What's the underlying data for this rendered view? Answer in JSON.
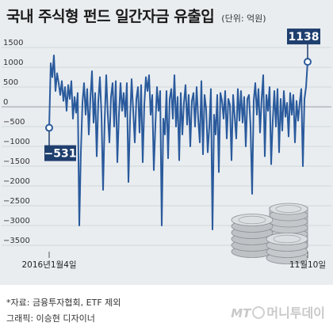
{
  "header": {
    "title": "국내 주식형 펀드 일간자금 유출입",
    "unit": "(단위: 억원)"
  },
  "chart_data": {
    "type": "line",
    "title": "국내 주식형 펀드 일간자금 유출입",
    "ylabel": "(단위: 억원)",
    "ylim": [
      -3500,
      1500
    ],
    "yticks": [
      1500,
      1000,
      500,
      0,
      -500,
      -1000,
      -1500,
      -2000,
      -2500,
      -3000,
      -3500
    ],
    "xtick_labels": [
      "2016년1월4일",
      "11월10일"
    ],
    "grid": true,
    "series": [
      {
        "values": [
          -531,
          1100,
          750,
          1300,
          400,
          850,
          600,
          300,
          650,
          150,
          500,
          -100,
          550,
          200,
          650,
          -300,
          250,
          -150,
          350,
          -3000,
          -1150,
          100,
          600,
          -200,
          450,
          -700,
          200,
          900,
          -400,
          350,
          -1250,
          150,
          750,
          -200,
          -2100,
          -350,
          800,
          -200,
          -900,
          250,
          600,
          -500,
          650,
          -1400,
          -200,
          600,
          -100,
          350,
          -250,
          600,
          -1900,
          -350,
          700,
          -100,
          -900,
          200,
          500,
          -650,
          550,
          -1400,
          50,
          750,
          400,
          800,
          -200,
          300,
          -1600,
          -450,
          500,
          -100,
          400,
          -3000,
          -300,
          -700,
          400,
          -1300,
          200,
          450,
          -300,
          800,
          -500,
          250,
          -1350,
          350,
          -700,
          100,
          550,
          -450,
          300,
          -1000,
          150,
          350,
          -500,
          500,
          -300,
          -900,
          650,
          -1200,
          300,
          -50,
          -1150,
          -500,
          450,
          -3100,
          -200,
          -700,
          300,
          -1650,
          350,
          150,
          -300,
          400,
          -800,
          200,
          50,
          -1350,
          300,
          -250,
          -800,
          450,
          -350,
          400,
          -400,
          250,
          -1000,
          200,
          300,
          -500,
          -2200,
          150,
          600,
          -200,
          450,
          -650,
          200,
          800,
          -1250,
          300,
          -100,
          500,
          -1450,
          -350,
          400,
          -500,
          450,
          -1150,
          200,
          -600,
          400,
          -250,
          100,
          -750,
          350,
          -200,
          300,
          -900,
          150,
          -350,
          100,
          450,
          -1500,
          200,
          500,
          1138
        ]
      }
    ],
    "annotations": [
      {
        "label": "-531",
        "value": -531
      },
      {
        "label": "1138",
        "value": 1138
      }
    ]
  },
  "colors": {
    "line": "#2a5a9c",
    "label_box": "#1f3f6e",
    "background": "#e9edf0"
  },
  "icons": [
    "coin-stacks-icon",
    "globe-icon"
  ],
  "footer": {
    "source": "*자료: 금융투자협회, ETF 제외",
    "credit": "그래픽: 이승현 디자이너",
    "logo_prefix": "MT",
    "logo_text": "머니투데이"
  }
}
